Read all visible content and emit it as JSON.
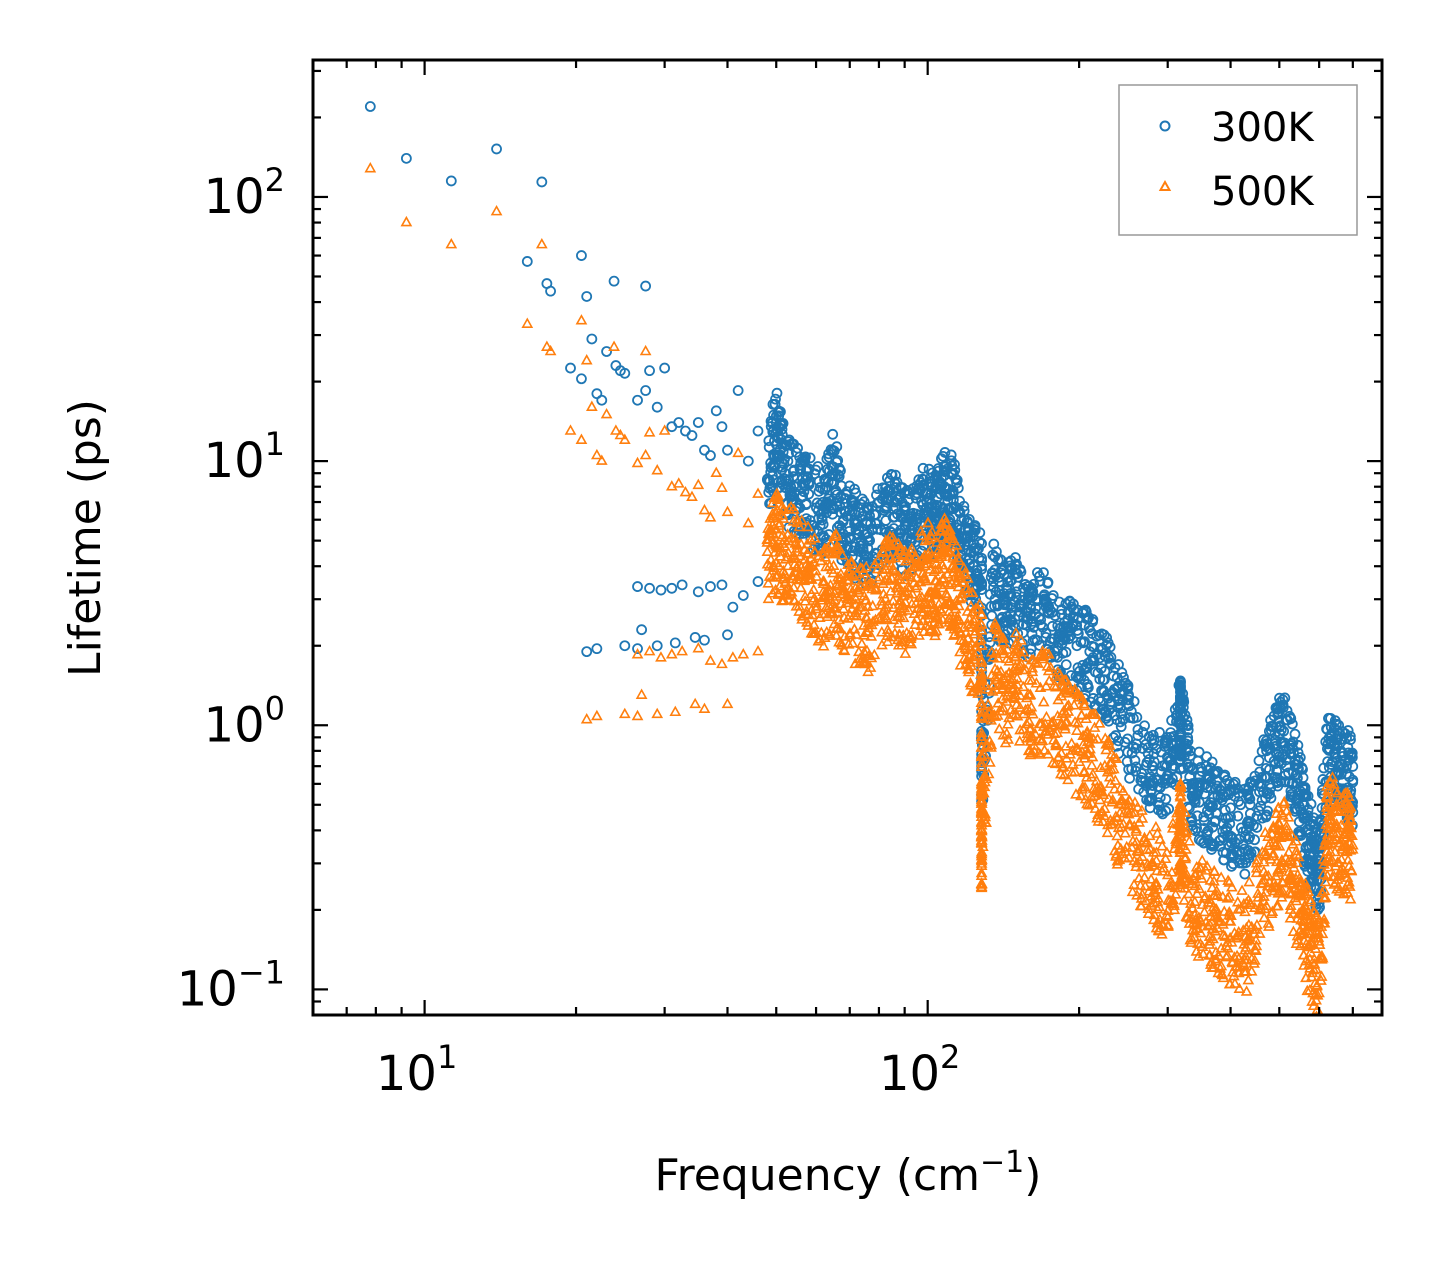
{
  "chart_data": {
    "type": "scatter",
    "title": "",
    "xlabel": "Frequency (cm",
    "xlabel_sup": "−1",
    "xlabel_end": ")",
    "ylabel": "Lifetime (ps)",
    "xscale": "log",
    "yscale": "log",
    "xlim": [
      6,
      800
    ],
    "ylim": [
      0.08,
      330
    ],
    "x_ticks": [
      {
        "value": 10,
        "base": "10",
        "exp": "1"
      },
      {
        "value": 100,
        "base": "10",
        "exp": "2"
      }
    ],
    "y_ticks": [
      {
        "value": 0.1,
        "base": "10",
        "exp": "−1"
      },
      {
        "value": 1,
        "base": "10",
        "exp": "0"
      },
      {
        "value": 10,
        "base": "10",
        "exp": "1"
      },
      {
        "value": 100,
        "base": "10",
        "exp": "2"
      }
    ],
    "legend_position": "top-right",
    "series": [
      {
        "name": "300K",
        "marker": "circle",
        "color": "#1f77b4",
        "points": [
          [
            7.8,
            220
          ],
          [
            9.2,
            140
          ],
          [
            11.3,
            115
          ],
          [
            13.9,
            152
          ],
          [
            17.1,
            114
          ],
          [
            16.0,
            57
          ],
          [
            17.5,
            47
          ],
          [
            17.8,
            44
          ],
          [
            20.5,
            60
          ],
          [
            21.0,
            42
          ],
          [
            23.8,
            48
          ],
          [
            27.5,
            46
          ],
          [
            19.5,
            22.5
          ],
          [
            20.5,
            20.5
          ],
          [
            21.5,
            29
          ],
          [
            22.0,
            18
          ],
          [
            22.5,
            17
          ],
          [
            23.0,
            26
          ],
          [
            24.0,
            23
          ],
          [
            24.5,
            22
          ],
          [
            25.0,
            21.5
          ],
          [
            26.5,
            17
          ],
          [
            27.5,
            18.5
          ],
          [
            28.0,
            22
          ],
          [
            29.0,
            16
          ],
          [
            30.0,
            22.5
          ],
          [
            31.0,
            13.5
          ],
          [
            32.0,
            14
          ],
          [
            33.0,
            13
          ],
          [
            34.0,
            12.5
          ],
          [
            35.0,
            14
          ],
          [
            36.0,
            11
          ],
          [
            37.0,
            10.5
          ],
          [
            38.0,
            15.5
          ],
          [
            39.0,
            13.5
          ],
          [
            40.0,
            11
          ],
          [
            42.0,
            18.5
          ],
          [
            44.0,
            10
          ],
          [
            46.0,
            13
          ],
          [
            48.0,
            8.5
          ],
          [
            50.0,
            14
          ],
          [
            52.0,
            9
          ],
          [
            55.0,
            8
          ],
          [
            58.0,
            7.5
          ],
          [
            62.0,
            6.5
          ],
          [
            65.0,
            9.5
          ],
          [
            68.0,
            6
          ],
          [
            72.0,
            5.5
          ],
          [
            76.0,
            5
          ],
          [
            82.0,
            6.5
          ],
          [
            86.0,
            7
          ],
          [
            90.0,
            5.5
          ],
          [
            95.0,
            6
          ],
          [
            100.0,
            7.5
          ],
          [
            104.0,
            6.5
          ],
          [
            108.0,
            8
          ],
          [
            112.0,
            7.5
          ],
          [
            116.0,
            5.5
          ],
          [
            122.0,
            4.5
          ],
          [
            128.0,
            4
          ],
          [
            135.0,
            3.5
          ],
          [
            142.0,
            3
          ],
          [
            150.0,
            3.2
          ],
          [
            160.0,
            2.6
          ],
          [
            172.0,
            2.8
          ],
          [
            185.0,
            2.2
          ],
          [
            198.0,
            2
          ],
          [
            210.0,
            1.9
          ],
          [
            225.0,
            1.6
          ],
          [
            240.0,
            1.2
          ],
          [
            260.0,
            0.85
          ],
          [
            280.0,
            0.7
          ],
          [
            300.0,
            0.65
          ],
          [
            318.0,
            1.1
          ],
          [
            318.0,
            1.05
          ],
          [
            335.0,
            0.6
          ],
          [
            355.0,
            0.55
          ],
          [
            375.0,
            0.5
          ],
          [
            400.0,
            0.45
          ],
          [
            430.0,
            0.4
          ],
          [
            460.0,
            0.6
          ],
          [
            490.0,
            0.85
          ],
          [
            510.0,
            0.95
          ],
          [
            540.0,
            0.65
          ],
          [
            560.0,
            0.45
          ],
          [
            580.0,
            0.35
          ],
          [
            600.0,
            0.28
          ],
          [
            625.0,
            0.85
          ],
          [
            650.0,
            0.75
          ],
          [
            680.0,
            0.7
          ],
          [
            700.0,
            0.62
          ],
          [
            26.5,
            3.35
          ],
          [
            28.0,
            3.3
          ],
          [
            29.5,
            3.25
          ],
          [
            31.0,
            3.3
          ],
          [
            32.5,
            3.4
          ],
          [
            35.0,
            3.2
          ],
          [
            37.0,
            3.35
          ],
          [
            39.0,
            3.4
          ],
          [
            41.0,
            2.8
          ],
          [
            43.0,
            3.1
          ],
          [
            46.0,
            3.5
          ],
          [
            21.0,
            1.9
          ],
          [
            22.0,
            1.95
          ],
          [
            25.0,
            2.0
          ],
          [
            26.5,
            1.95
          ],
          [
            27.0,
            2.3
          ],
          [
            29.0,
            2.0
          ],
          [
            31.5,
            2.05
          ],
          [
            34.5,
            2.15
          ],
          [
            36.0,
            2.1
          ],
          [
            40.0,
            2.2
          ],
          [
            128.0,
            0.68
          ]
        ]
      },
      {
        "name": "500K",
        "marker": "triangle",
        "color": "#ff7f0e",
        "points": [
          [
            7.8,
            128
          ],
          [
            9.2,
            80
          ],
          [
            11.3,
            66
          ],
          [
            13.9,
            88
          ],
          [
            17.1,
            66
          ],
          [
            16.0,
            33
          ],
          [
            17.5,
            27
          ],
          [
            17.8,
            26
          ],
          [
            20.5,
            34
          ],
          [
            21.0,
            24
          ],
          [
            23.8,
            27
          ],
          [
            27.5,
            26
          ],
          [
            19.5,
            13
          ],
          [
            20.5,
            12
          ],
          [
            21.5,
            16
          ],
          [
            22.0,
            10.5
          ],
          [
            22.5,
            10
          ],
          [
            23.0,
            15
          ],
          [
            24.0,
            13
          ],
          [
            24.5,
            12.5
          ],
          [
            25.0,
            12
          ],
          [
            26.5,
            9.8
          ],
          [
            27.5,
            10.5
          ],
          [
            28.0,
            12.8
          ],
          [
            29.0,
            9.2
          ],
          [
            30.0,
            13
          ],
          [
            31.0,
            8
          ],
          [
            32.0,
            8.2
          ],
          [
            33.0,
            7.6
          ],
          [
            34.0,
            7.3
          ],
          [
            35.0,
            8.1
          ],
          [
            36.0,
            6.5
          ],
          [
            37.0,
            6.1
          ],
          [
            38.0,
            9
          ],
          [
            39.0,
            7.9
          ],
          [
            40.0,
            6.4
          ],
          [
            42.0,
            10.7
          ],
          [
            44.0,
            5.8
          ],
          [
            46.0,
            7.5
          ],
          [
            48.0,
            4.9
          ],
          [
            50.0,
            5.5
          ],
          [
            52.0,
            5
          ],
          [
            55.0,
            4.5
          ],
          [
            58.0,
            4
          ],
          [
            62.0,
            3.5
          ],
          [
            65.0,
            4
          ],
          [
            68.0,
            3.2
          ],
          [
            72.0,
            3
          ],
          [
            76.0,
            2.8
          ],
          [
            82.0,
            3.5
          ],
          [
            86.0,
            3.8
          ],
          [
            90.0,
            3.2
          ],
          [
            95.0,
            3.6
          ],
          [
            100.0,
            4.2
          ],
          [
            104.0,
            3.5
          ],
          [
            108.0,
            4.5
          ],
          [
            112.0,
            4
          ],
          [
            116.0,
            3
          ],
          [
            122.0,
            2.4
          ],
          [
            128.0,
            2
          ],
          [
            135.0,
            1.8
          ],
          [
            142.0,
            1.5
          ],
          [
            150.0,
            1.6
          ],
          [
            160.0,
            1.3
          ],
          [
            172.0,
            1.4
          ],
          [
            185.0,
            1.1
          ],
          [
            198.0,
            0.95
          ],
          [
            210.0,
            0.85
          ],
          [
            225.0,
            0.7
          ],
          [
            240.0,
            0.5
          ],
          [
            260.0,
            0.36
          ],
          [
            280.0,
            0.3
          ],
          [
            300.0,
            0.27
          ],
          [
            318.0,
            0.45
          ],
          [
            318.0,
            0.42
          ],
          [
            335.0,
            0.25
          ],
          [
            355.0,
            0.22
          ],
          [
            375.0,
            0.2
          ],
          [
            400.0,
            0.18
          ],
          [
            430.0,
            0.17
          ],
          [
            460.0,
            0.25
          ],
          [
            490.0,
            0.35
          ],
          [
            510.0,
            0.38
          ],
          [
            540.0,
            0.26
          ],
          [
            560.0,
            0.19
          ],
          [
            580.0,
            0.15
          ],
          [
            600.0,
            0.13
          ],
          [
            625.0,
            0.5
          ],
          [
            650.0,
            0.42
          ],
          [
            680.0,
            0.4
          ],
          [
            700.0,
            0.35
          ],
          [
            26.5,
            1.85
          ],
          [
            28.0,
            1.9
          ],
          [
            29.5,
            1.8
          ],
          [
            31.0,
            1.85
          ],
          [
            32.5,
            1.9
          ],
          [
            35.0,
            1.95
          ],
          [
            37.0,
            1.75
          ],
          [
            39.0,
            1.7
          ],
          [
            41.0,
            1.8
          ],
          [
            43.0,
            1.85
          ],
          [
            46.0,
            1.9
          ],
          [
            21.0,
            1.05
          ],
          [
            22.0,
            1.08
          ],
          [
            25.0,
            1.1
          ],
          [
            26.5,
            1.08
          ],
          [
            27.0,
            1.3
          ],
          [
            29.0,
            1.1
          ],
          [
            31.5,
            1.12
          ],
          [
            34.5,
            1.2
          ],
          [
            36.0,
            1.15
          ],
          [
            40.0,
            1.2
          ],
          [
            128.0,
            0.4
          ],
          [
            128.0,
            0.43
          ]
        ],
        "clusters": [
          {
            "x_range": [
              52,
              130
            ],
            "y_range": [
              1.4,
              4.6
            ]
          },
          {
            "x_range": [
              130,
              320
            ],
            "y_range": [
              0.35,
              1.6
            ]
          },
          {
            "x_range": [
              320,
              700
            ],
            "y_range": [
              0.12,
              0.55
            ]
          }
        ]
      }
    ]
  }
}
